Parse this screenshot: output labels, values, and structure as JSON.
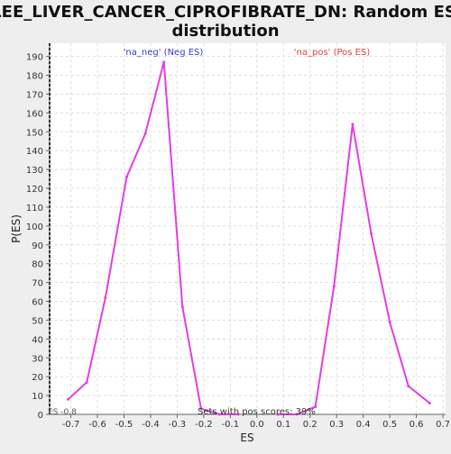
{
  "chart_data": {
    "type": "line",
    "title_line1": "LEE_LIVER_CANCER_CIPROFIBRATE_DN: Random ES",
    "title_line2": "distribution",
    "xlabel": "ES",
    "ylabel": "P(ES)",
    "xlim": [
      -0.78,
      0.71
    ],
    "ylim": [
      0,
      197
    ],
    "xticks": [
      -0.7,
      -0.6,
      -0.5,
      -0.4,
      -0.3,
      -0.2,
      -0.1,
      0.0,
      0.1,
      0.2,
      0.3,
      0.4,
      0.5,
      0.6,
      0.7
    ],
    "xtick_labels": [
      "-0.7",
      "-0.6",
      "-0.5",
      "-0.4",
      "-0.3",
      "-0.2",
      "-0.1",
      "0.0",
      "0.1",
      "0.2",
      "0.3",
      "0.4",
      "0.5",
      "0.6",
      "0.7"
    ],
    "yticks": [
      0,
      10,
      20,
      30,
      40,
      50,
      60,
      70,
      80,
      90,
      100,
      110,
      120,
      130,
      140,
      150,
      160,
      170,
      180,
      190
    ],
    "grid": true,
    "color": "#e23ee2",
    "series": [
      {
        "x": [
          -0.71,
          -0.64,
          -0.57,
          -0.49,
          -0.42,
          -0.35,
          -0.28,
          -0.21,
          -0.14,
          -0.07
        ],
        "y": [
          8,
          17,
          62,
          126,
          149,
          187,
          57,
          3,
          0,
          0
        ]
      },
      {
        "x": [
          0.08,
          0.15,
          0.22,
          0.29,
          0.36,
          0.43,
          0.5,
          0.57,
          0.65
        ],
        "y": [
          0,
          0,
          4,
          68,
          154,
          96,
          49,
          15,
          6
        ]
      }
    ],
    "neg_label": "'na_neg' (Neg ES)",
    "pos_label": "'na_pos' (Pos ES)",
    "pos_scores_text": "Sets with pos scores: 39%",
    "es_marker_label": "ES -0.8",
    "es_marker_x": -0.78,
    "neg_label_color": "#3a3ad0",
    "pos_label_color": "#e04040"
  }
}
